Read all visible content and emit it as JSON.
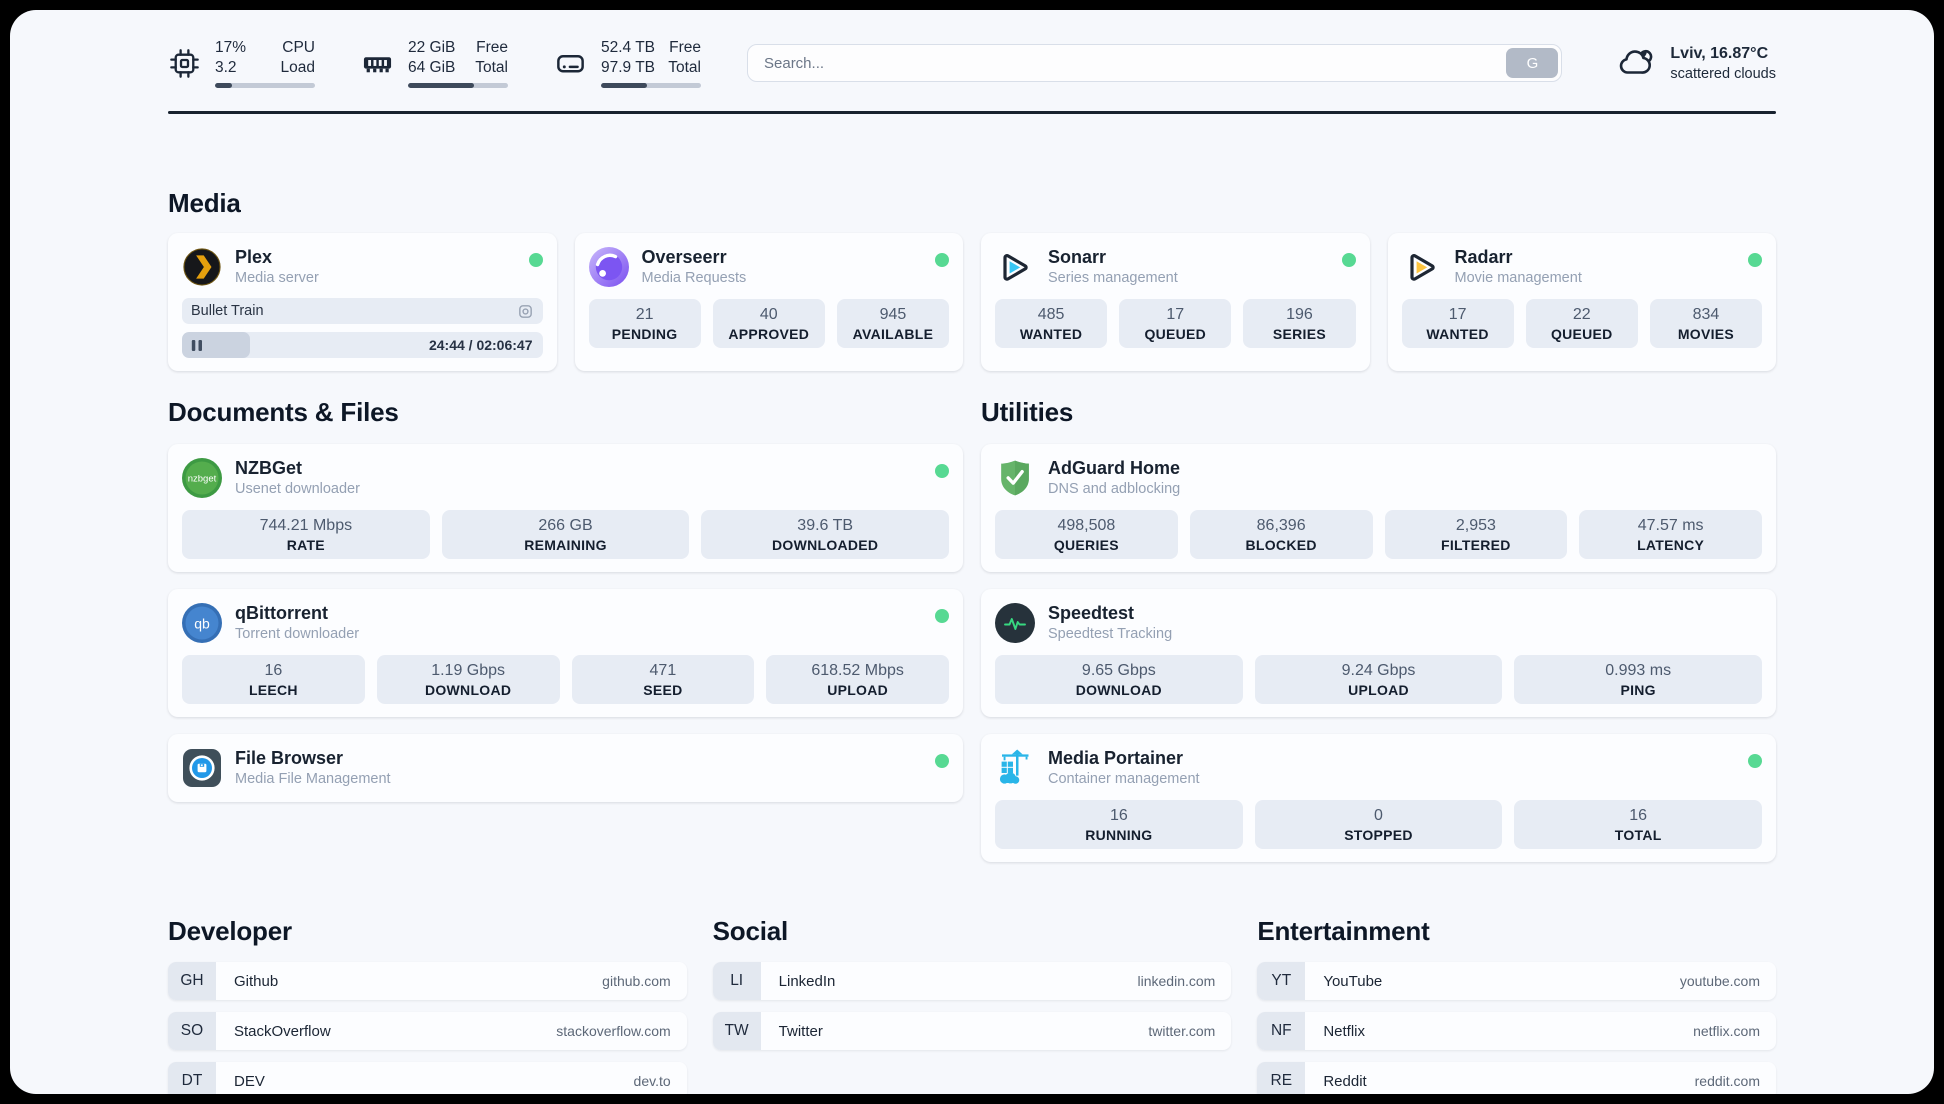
{
  "topbar": {
    "resources": [
      {
        "icon": "cpu-icon",
        "line1": "17%",
        "line2": "3.2",
        "label1": "CPU",
        "label2": "Load",
        "progress_pct": 17
      },
      {
        "icon": "memory-icon",
        "line1": "22 GiB",
        "line2": "64 GiB",
        "label1": "Free",
        "label2": "Total",
        "progress_pct": 66
      },
      {
        "icon": "disk-icon",
        "line1": "52.4 TB",
        "line2": "97.9 TB",
        "label1": "Free",
        "label2": "Total",
        "progress_pct": 46
      }
    ],
    "search": {
      "placeholder": "Search...",
      "button_label": "G"
    },
    "weather": {
      "icon": "cloud-icon",
      "location": "Lviv, 16.87°C",
      "condition": "scattered clouds"
    }
  },
  "sections": {
    "media": {
      "title": "Media",
      "plex": {
        "name": "Plex",
        "subtitle": "Media server",
        "status": "online",
        "now_playing": "Bullet Train",
        "time_display": "24:44 / 02:06:47",
        "progress_pct": 19
      },
      "overseerr": {
        "name": "Overseerr",
        "subtitle": "Media Requests",
        "status": "online",
        "stats": [
          {
            "value": "21",
            "label": "PENDING"
          },
          {
            "value": "40",
            "label": "APPROVED"
          },
          {
            "value": "945",
            "label": "AVAILABLE"
          }
        ]
      },
      "sonarr": {
        "name": "Sonarr",
        "subtitle": "Series management",
        "status": "online",
        "stats": [
          {
            "value": "485",
            "label": "WANTED"
          },
          {
            "value": "17",
            "label": "QUEUED"
          },
          {
            "value": "196",
            "label": "SERIES"
          }
        ]
      },
      "radarr": {
        "name": "Radarr",
        "subtitle": "Movie management",
        "status": "online",
        "stats": [
          {
            "value": "17",
            "label": "WANTED"
          },
          {
            "value": "22",
            "label": "QUEUED"
          },
          {
            "value": "834",
            "label": "MOVIES"
          }
        ]
      }
    },
    "documents": {
      "title": "Documents & Files",
      "nzbget": {
        "name": "NZBGet",
        "subtitle": "Usenet downloader",
        "status": "online",
        "stats": [
          {
            "value": "744.21 Mbps",
            "label": "RATE"
          },
          {
            "value": "266 GB",
            "label": "REMAINING"
          },
          {
            "value": "39.6 TB",
            "label": "DOWNLOADED"
          }
        ]
      },
      "qbittorrent": {
        "name": "qBittorrent",
        "subtitle": "Torrent downloader",
        "status": "online",
        "stats": [
          {
            "value": "16",
            "label": "LEECH"
          },
          {
            "value": "1.19 Gbps",
            "label": "DOWNLOAD"
          },
          {
            "value": "471",
            "label": "SEED"
          },
          {
            "value": "618.52 Mbps",
            "label": "UPLOAD"
          }
        ]
      },
      "filebrowser": {
        "name": "File Browser",
        "subtitle": "Media File Management",
        "status": "online"
      }
    },
    "utilities": {
      "title": "Utilities",
      "adguard": {
        "name": "AdGuard Home",
        "subtitle": "DNS and adblocking",
        "stats": [
          {
            "value": "498,508",
            "label": "QUERIES"
          },
          {
            "value": "86,396",
            "label": "BLOCKED"
          },
          {
            "value": "2,953",
            "label": "FILTERED"
          },
          {
            "value": "47.57 ms",
            "label": "LATENCY"
          }
        ]
      },
      "speedtest": {
        "name": "Speedtest",
        "subtitle": "Speedtest Tracking",
        "stats": [
          {
            "value": "9.65 Gbps",
            "label": "DOWNLOAD"
          },
          {
            "value": "9.24 Gbps",
            "label": "UPLOAD"
          },
          {
            "value": "0.993 ms",
            "label": "PING"
          }
        ]
      },
      "portainer": {
        "name": "Media Portainer",
        "subtitle": "Container management",
        "status": "online",
        "stats": [
          {
            "value": "16",
            "label": "RUNNING"
          },
          {
            "value": "0",
            "label": "STOPPED"
          },
          {
            "value": "16",
            "label": "TOTAL"
          }
        ]
      }
    },
    "bookmarks": [
      {
        "title": "Developer",
        "items": [
          {
            "abbr": "GH",
            "name": "Github",
            "domain": "github.com"
          },
          {
            "abbr": "SO",
            "name": "StackOverflow",
            "domain": "stackoverflow.com"
          },
          {
            "abbr": "DT",
            "name": "DEV",
            "domain": "dev.to"
          }
        ]
      },
      {
        "title": "Social",
        "items": [
          {
            "abbr": "LI",
            "name": "LinkedIn",
            "domain": "linkedin.com"
          },
          {
            "abbr": "TW",
            "name": "Twitter",
            "domain": "twitter.com"
          }
        ]
      },
      {
        "title": "Entertainment",
        "items": [
          {
            "abbr": "YT",
            "name": "YouTube",
            "domain": "youtube.com"
          },
          {
            "abbr": "NF",
            "name": "Netflix",
            "domain": "netflix.com"
          },
          {
            "abbr": "RE",
            "name": "Reddit",
            "domain": "reddit.com"
          }
        ]
      }
    ]
  },
  "colors": {
    "status_online": "#57d993",
    "plex_accent": "#e5a00d",
    "progress_fill": "#3e4a5b"
  }
}
